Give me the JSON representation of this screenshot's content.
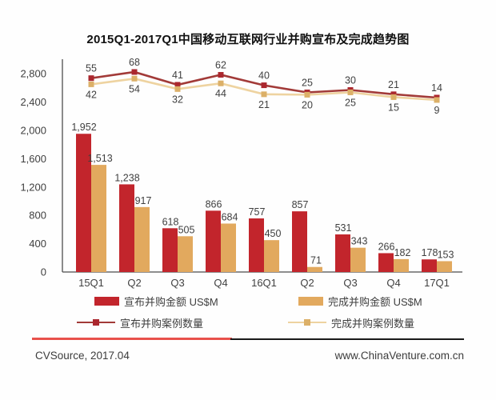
{
  "title": "2015Q1-2017Q1中国移动互联网行业并购宣布及完成趋势图",
  "chart_data": {
    "type": "bar",
    "subtype": "grouped bars with overlaid line series (combo chart)",
    "categories": [
      "15Q1",
      "Q2",
      "Q3",
      "Q4",
      "16Q1",
      "Q2",
      "Q3",
      "Q4",
      "17Q1"
    ],
    "bar_series": [
      {
        "name": "宣布并购金额 US$M",
        "color": "#c2252c",
        "values": [
          1952,
          1238,
          618,
          866,
          757,
          857,
          531,
          266,
          178
        ]
      },
      {
        "name": "完成并购金额 US$M",
        "color": "#e2a95e",
        "values": [
          1513,
          917,
          505,
          684,
          450,
          71,
          343,
          182,
          153
        ]
      }
    ],
    "line_series": [
      {
        "name": "宣布并购案例数量",
        "color": "#a23a38",
        "marker_color": "#ab272e",
        "values": [
          55,
          68,
          41,
          62,
          40,
          25,
          30,
          21,
          14
        ]
      },
      {
        "name": "完成并购案例数量",
        "color": "#eed3a0",
        "marker_color": "#dcb068",
        "values": [
          42,
          54,
          32,
          44,
          21,
          20,
          25,
          15,
          9
        ]
      }
    ],
    "y_axis": {
      "min": 0,
      "max": 2800,
      "step": 400,
      "tick_labels": [
        "0",
        "400",
        "800",
        "1,200",
        "1,600",
        "2,000",
        "2,400",
        "2,800"
      ]
    },
    "grid": false,
    "legend_position": "bottom",
    "label_color": "#3f3f3f",
    "axis_color": "#4d4d4d"
  },
  "footer": {
    "source": "CVSource, 2017.04",
    "website": "www.ChinaVenture.com.cn",
    "divider_red": "#e8514b",
    "divider_dark": "#1a1a1a"
  }
}
